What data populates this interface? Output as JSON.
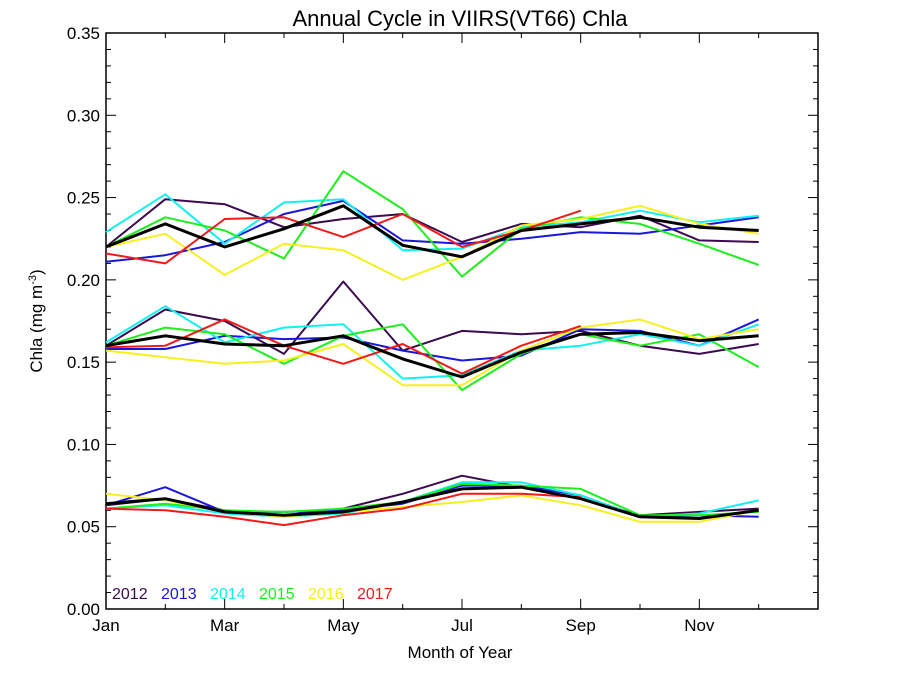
{
  "chart_data": {
    "type": "line",
    "title": "Annual Cycle in VIIRS(VT66) Chla",
    "xlabel": "Month of Year",
    "ylabel_main": "Chla (mg m",
    "ylabel_sup": "-3",
    "ylabel_close": ")",
    "x_ticks": [
      "Jan",
      "Mar",
      "May",
      "Jul",
      "Sep",
      "Nov"
    ],
    "y_ticks": [
      "0.00",
      "0.05",
      "0.10",
      "0.15",
      "0.20",
      "0.25",
      "0.30",
      "0.35"
    ],
    "ylim": [
      0,
      0.35
    ],
    "xlim": [
      1,
      13
    ],
    "legend_position": "bottom-left",
    "series": [
      {
        "name": "2012",
        "color": "#3b0a4f",
        "width": 2,
        "groups": [
          {
            "x": [
              1,
              2,
              3,
              4,
              5,
              6,
              7,
              8,
              9,
              10,
              11,
              12
            ],
            "y": [
              0.22,
              0.249,
              0.246,
              0.232,
              0.237,
              0.24,
              0.223,
              0.234,
              0.232,
              0.239,
              0.224,
              0.223
            ]
          },
          {
            "x": [
              1,
              2,
              3,
              4,
              5,
              6,
              7,
              8,
              9,
              10,
              11,
              12
            ],
            "y": [
              0.16,
              0.182,
              0.175,
              0.155,
              0.199,
              0.157,
              0.169,
              0.167,
              0.169,
              0.16,
              0.155,
              0.161
            ]
          },
          {
            "x": [
              1,
              2,
              3,
              4,
              5,
              6,
              7,
              8,
              9,
              10,
              11,
              12
            ],
            "y": [
              0.063,
              0.067,
              0.06,
              0.057,
              0.061,
              0.07,
              0.081,
              0.074,
              0.067,
              0.057,
              0.059,
              0.061
            ]
          }
        ]
      },
      {
        "name": "2013",
        "color": "#1a17d9",
        "width": 2,
        "groups": [
          {
            "x": [
              1,
              2,
              3,
              4,
              5,
              6,
              7,
              8,
              9,
              10,
              11,
              12
            ],
            "y": [
              0.211,
              0.215,
              0.223,
              0.24,
              0.248,
              0.224,
              0.222,
              0.225,
              0.229,
              0.228,
              0.233,
              0.238
            ]
          },
          {
            "x": [
              1,
              2,
              3,
              4,
              5,
              6,
              7,
              8,
              9,
              10,
              11,
              12
            ],
            "y": [
              0.158,
              0.158,
              0.166,
              0.164,
              0.165,
              0.157,
              0.151,
              0.154,
              0.17,
              0.169,
              0.16,
              0.176
            ]
          },
          {
            "x": [
              1,
              2,
              3,
              4,
              5,
              6,
              7,
              8,
              9,
              10,
              11,
              12
            ],
            "y": [
              0.063,
              0.074,
              0.059,
              0.059,
              0.06,
              0.064,
              0.075,
              0.075,
              0.069,
              0.056,
              0.057,
              0.056
            ]
          }
        ]
      },
      {
        "name": "2014",
        "color": "#12f0f0",
        "width": 2,
        "groups": [
          {
            "x": [
              1,
              2,
              3,
              4,
              5,
              6,
              7,
              8,
              9,
              10,
              11,
              12
            ],
            "y": [
              0.229,
              0.252,
              0.222,
              0.247,
              0.249,
              0.218,
              0.219,
              0.232,
              0.235,
              0.242,
              0.235,
              0.239
            ]
          },
          {
            "x": [
              1,
              2,
              3,
              4,
              5,
              6,
              7,
              8,
              9,
              10,
              11,
              12
            ],
            "y": [
              0.162,
              0.184,
              0.162,
              0.171,
              0.173,
              0.14,
              0.142,
              0.157,
              0.16,
              0.167,
              0.16,
              0.173
            ]
          },
          {
            "x": [
              1,
              2,
              3,
              4,
              5,
              6,
              7,
              8,
              9,
              10,
              11,
              12
            ],
            "y": [
              0.061,
              0.063,
              0.058,
              0.056,
              0.058,
              0.065,
              0.077,
              0.077,
              0.069,
              0.056,
              0.058,
              0.066
            ]
          }
        ]
      },
      {
        "name": "2015",
        "color": "#1cf01c",
        "width": 2,
        "groups": [
          {
            "x": [
              1,
              2,
              3,
              4,
              5,
              6,
              7,
              8,
              9,
              10,
              11,
              12
            ],
            "y": [
              0.22,
              0.238,
              0.23,
              0.213,
              0.266,
              0.243,
              0.202,
              0.231,
              0.238,
              0.234,
              0.222,
              0.209
            ]
          },
          {
            "x": [
              1,
              2,
              3,
              4,
              5,
              6,
              7,
              8,
              9,
              10,
              11,
              12
            ],
            "y": [
              0.16,
              0.171,
              0.167,
              0.149,
              0.166,
              0.173,
              0.133,
              0.155,
              0.167,
              0.16,
              0.167,
              0.147
            ]
          },
          {
            "x": [
              1,
              2,
              3,
              4,
              5,
              6,
              7,
              8,
              9,
              10,
              11,
              12
            ],
            "y": [
              0.061,
              0.064,
              0.06,
              0.059,
              0.061,
              0.065,
              0.076,
              0.075,
              0.073,
              0.057,
              0.057,
              0.059
            ]
          }
        ]
      },
      {
        "name": "2016",
        "color": "#f6f01e",
        "width": 2,
        "groups": [
          {
            "x": [
              1,
              2,
              3,
              4,
              5,
              6,
              7,
              8,
              9,
              10,
              11,
              12
            ],
            "y": [
              0.22,
              0.228,
              0.203,
              0.222,
              0.218,
              0.2,
              0.214,
              0.233,
              0.237,
              0.245,
              0.234,
              0.228
            ]
          },
          {
            "x": [
              1,
              2,
              3,
              4,
              5,
              6,
              7,
              8,
              9,
              10,
              11,
              12
            ],
            "y": [
              0.157,
              0.153,
              0.149,
              0.151,
              0.161,
              0.136,
              0.136,
              0.157,
              0.171,
              0.176,
              0.164,
              0.17
            ]
          },
          {
            "x": [
              1,
              2,
              3,
              4,
              5,
              6,
              7,
              8,
              9,
              10,
              11,
              12
            ],
            "y": [
              0.07,
              0.066,
              0.059,
              0.056,
              0.059,
              0.062,
              0.065,
              0.069,
              0.063,
              0.053,
              0.053,
              0.06
            ]
          }
        ]
      },
      {
        "name": "2017",
        "color": "#f01a1a",
        "width": 2,
        "groups": [
          {
            "x": [
              1,
              2,
              3,
              4,
              5,
              6,
              7,
              8,
              9
            ],
            "y": [
              0.216,
              0.21,
              0.237,
              0.238,
              0.226,
              0.24,
              0.22,
              0.23,
              0.242
            ]
          },
          {
            "x": [
              1,
              2,
              3,
              4,
              5,
              6,
              7,
              8,
              9
            ],
            "y": [
              0.159,
              0.16,
              0.176,
              0.16,
              0.149,
              0.161,
              0.143,
              0.16,
              0.172
            ]
          },
          {
            "x": [
              1,
              2,
              3,
              4,
              5,
              6,
              7,
              8,
              9
            ],
            "y": [
              0.061,
              0.06,
              0.056,
              0.051,
              0.057,
              0.061,
              0.07,
              0.07,
              0.068
            ]
          }
        ]
      },
      {
        "name": "",
        "color": "#000000",
        "width": 3,
        "groups": [
          {
            "x": [
              1,
              2,
              3,
              4,
              5,
              6,
              7,
              8,
              9,
              10,
              11,
              12
            ],
            "y": [
              0.22,
              0.234,
              0.22,
              0.231,
              0.245,
              0.221,
              0.214,
              0.23,
              0.234,
              0.238,
              0.232,
              0.23
            ]
          },
          {
            "x": [
              1,
              2,
              3,
              4,
              5,
              6,
              7,
              8,
              9,
              10,
              11,
              12
            ],
            "y": [
              0.16,
              0.166,
              0.161,
              0.16,
              0.166,
              0.152,
              0.141,
              0.156,
              0.167,
              0.168,
              0.163,
              0.166
            ]
          },
          {
            "x": [
              1,
              2,
              3,
              4,
              5,
              6,
              7,
              8,
              9,
              10,
              11,
              12
            ],
            "y": [
              0.064,
              0.067,
              0.059,
              0.057,
              0.059,
              0.065,
              0.073,
              0.074,
              0.067,
              0.056,
              0.055,
              0.06
            ]
          }
        ]
      }
    ]
  }
}
